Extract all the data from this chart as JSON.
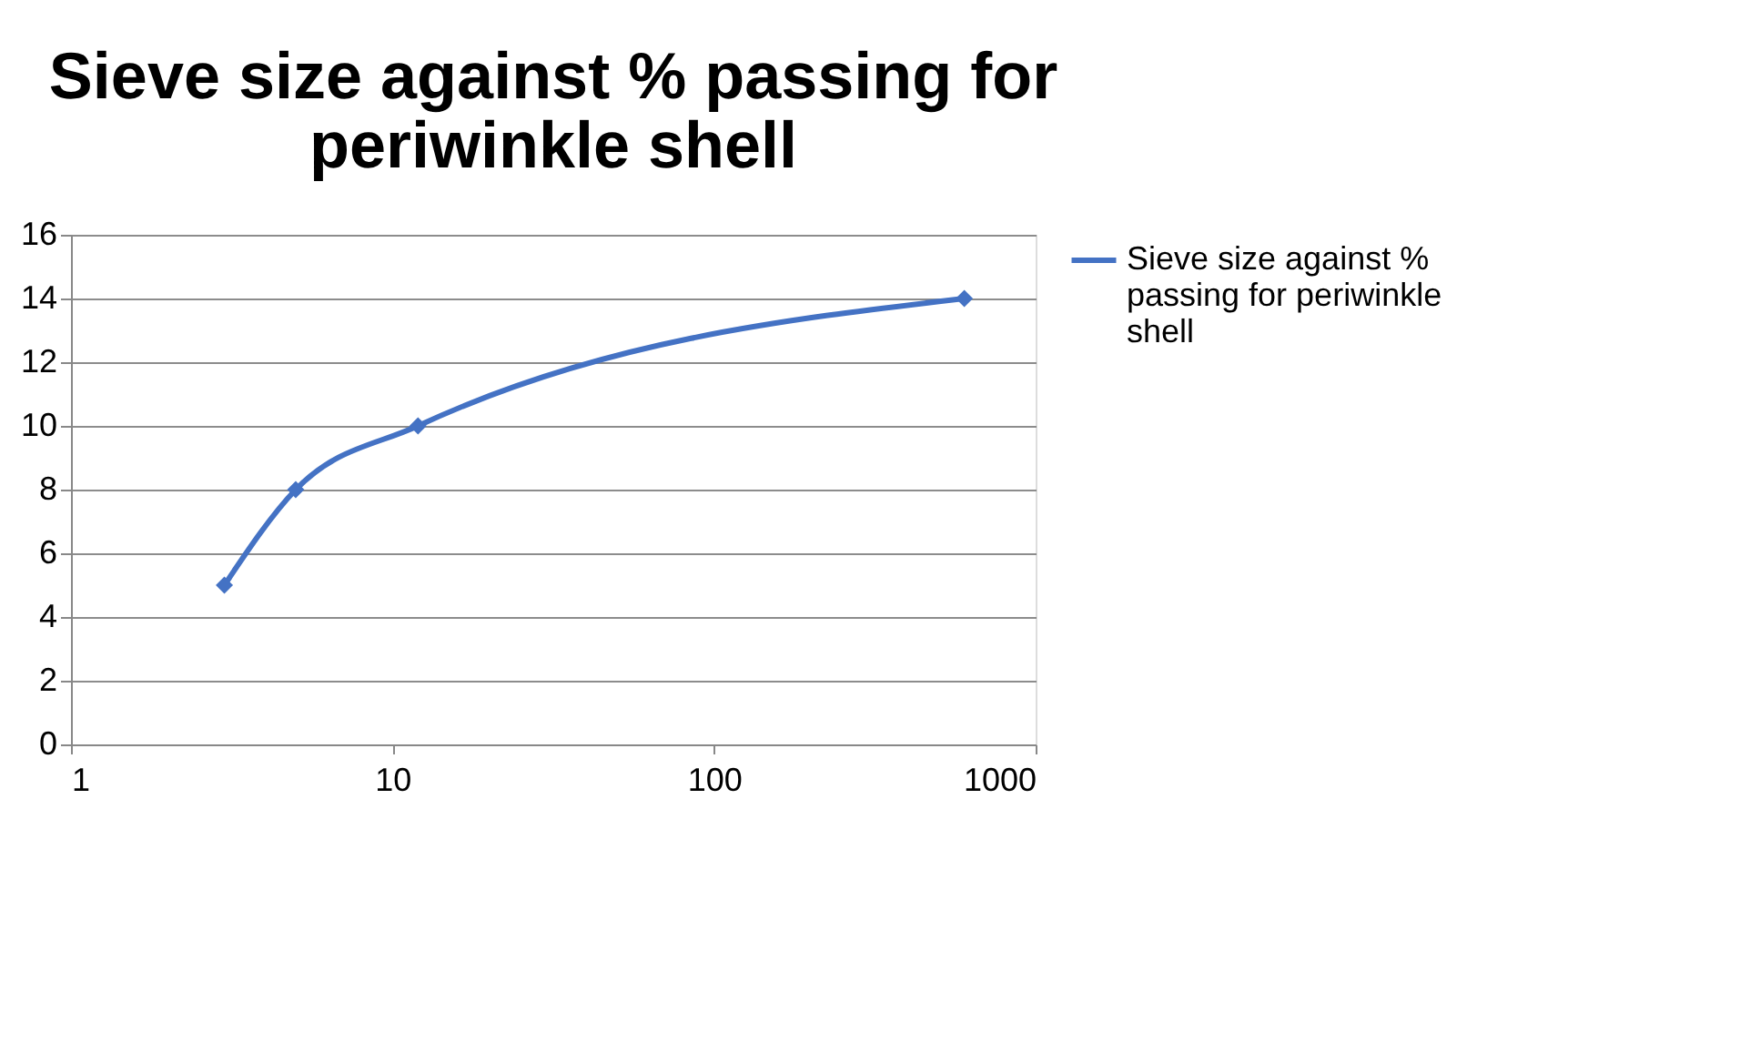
{
  "chart_data": {
    "type": "line",
    "title": "Sieve size against % passing for periwinkle shell",
    "x": [
      3,
      5,
      12,
      600
    ],
    "series": [
      {
        "name": "Sieve size against % passing for periwinkle shell",
        "color": "#4472c4",
        "values": [
          5,
          8,
          10,
          14
        ]
      }
    ],
    "log": "x",
    "xlim": [
      1,
      1000
    ],
    "xticks": [
      1,
      10,
      100,
      1000
    ],
    "ylim": [
      0,
      16
    ],
    "yticks": [
      0,
      2,
      4,
      6,
      8,
      10,
      12,
      14,
      16
    ],
    "grid": "y",
    "legend": "right",
    "marker": "diamond",
    "line_style": "solid"
  }
}
